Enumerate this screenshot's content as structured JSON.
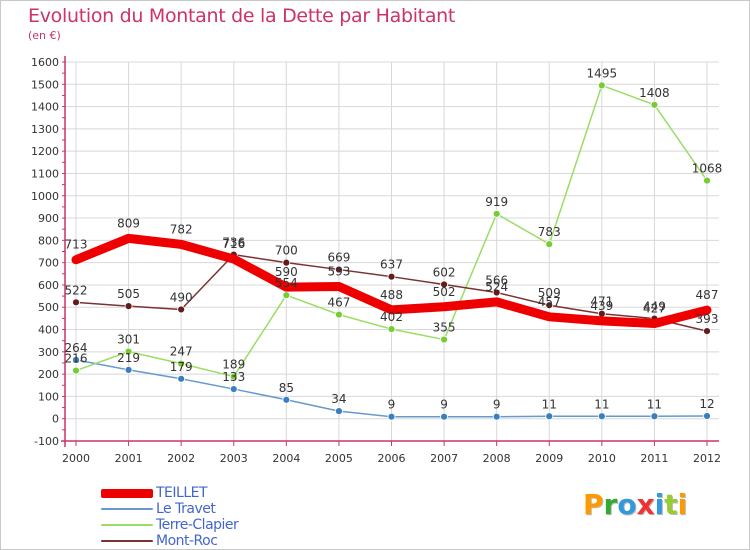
{
  "header": {
    "title": "Evolution du Montant de la Dette par Habitant",
    "unit": "(en €)"
  },
  "colors": {
    "title": "#cc3366",
    "axis": "#cc3366",
    "grid": "#d8d8d8",
    "legend_text": "#4466cc",
    "value_label": "#333333"
  },
  "chart_data": {
    "type": "line",
    "title": "Evolution du Montant de la Dette par Habitant",
    "ylabel": "(en €)",
    "xlabel": "",
    "ylim": [
      -100,
      1600
    ],
    "yticks": [
      -100,
      0,
      100,
      200,
      300,
      400,
      500,
      600,
      700,
      800,
      900,
      1000,
      1100,
      1200,
      1300,
      1400,
      1500,
      1600
    ],
    "x": [
      "2000",
      "2001",
      "2002",
      "2003",
      "2004",
      "2005",
      "2006",
      "2007",
      "2008",
      "2009",
      "2010",
      "2011",
      "2012"
    ],
    "grid": true,
    "series": [
      {
        "name": "Le Travet",
        "key": "letravet",
        "color": "#6699cc",
        "marker": "#3a7fc0",
        "values": [
          264,
          219,
          179,
          133,
          85,
          34,
          9,
          9,
          9,
          11,
          11,
          11,
          12
        ]
      },
      {
        "name": "Terre-Clapier",
        "key": "terreclapier",
        "color": "#99dd66",
        "marker": "#77cc33",
        "values": [
          216,
          301,
          247,
          189,
          554,
          467,
          402,
          355,
          919,
          783,
          1495,
          1408,
          1068
        ]
      },
      {
        "name": "Mont-Roc",
        "key": "montroc",
        "color": "#7a3333",
        "marker": "#661a1a",
        "values": [
          522,
          505,
          490,
          736,
          700,
          669,
          637,
          602,
          566,
          509,
          471,
          449,
          393
        ]
      },
      {
        "name": "TEILLET",
        "key": "teillet",
        "color": "#ee0000",
        "marker": "#ee0000",
        "values": [
          713,
          809,
          782,
          716,
          590,
          593,
          488,
          502,
          524,
          457,
          439,
          427,
          487
        ]
      }
    ],
    "legend": [
      "TEILLET",
      "Le Travet",
      "Terre-Clapier",
      "Mont-Roc"
    ],
    "legend_position": "bottom-left"
  },
  "logo": {
    "letters": [
      "P",
      "r",
      "o",
      "x",
      "i",
      "t",
      "i"
    ],
    "colors": [
      "#ff9900",
      "#33aa33",
      "#3399dd",
      "#ee3333",
      "#3399dd",
      "#99cc33",
      "#ff9900"
    ]
  }
}
